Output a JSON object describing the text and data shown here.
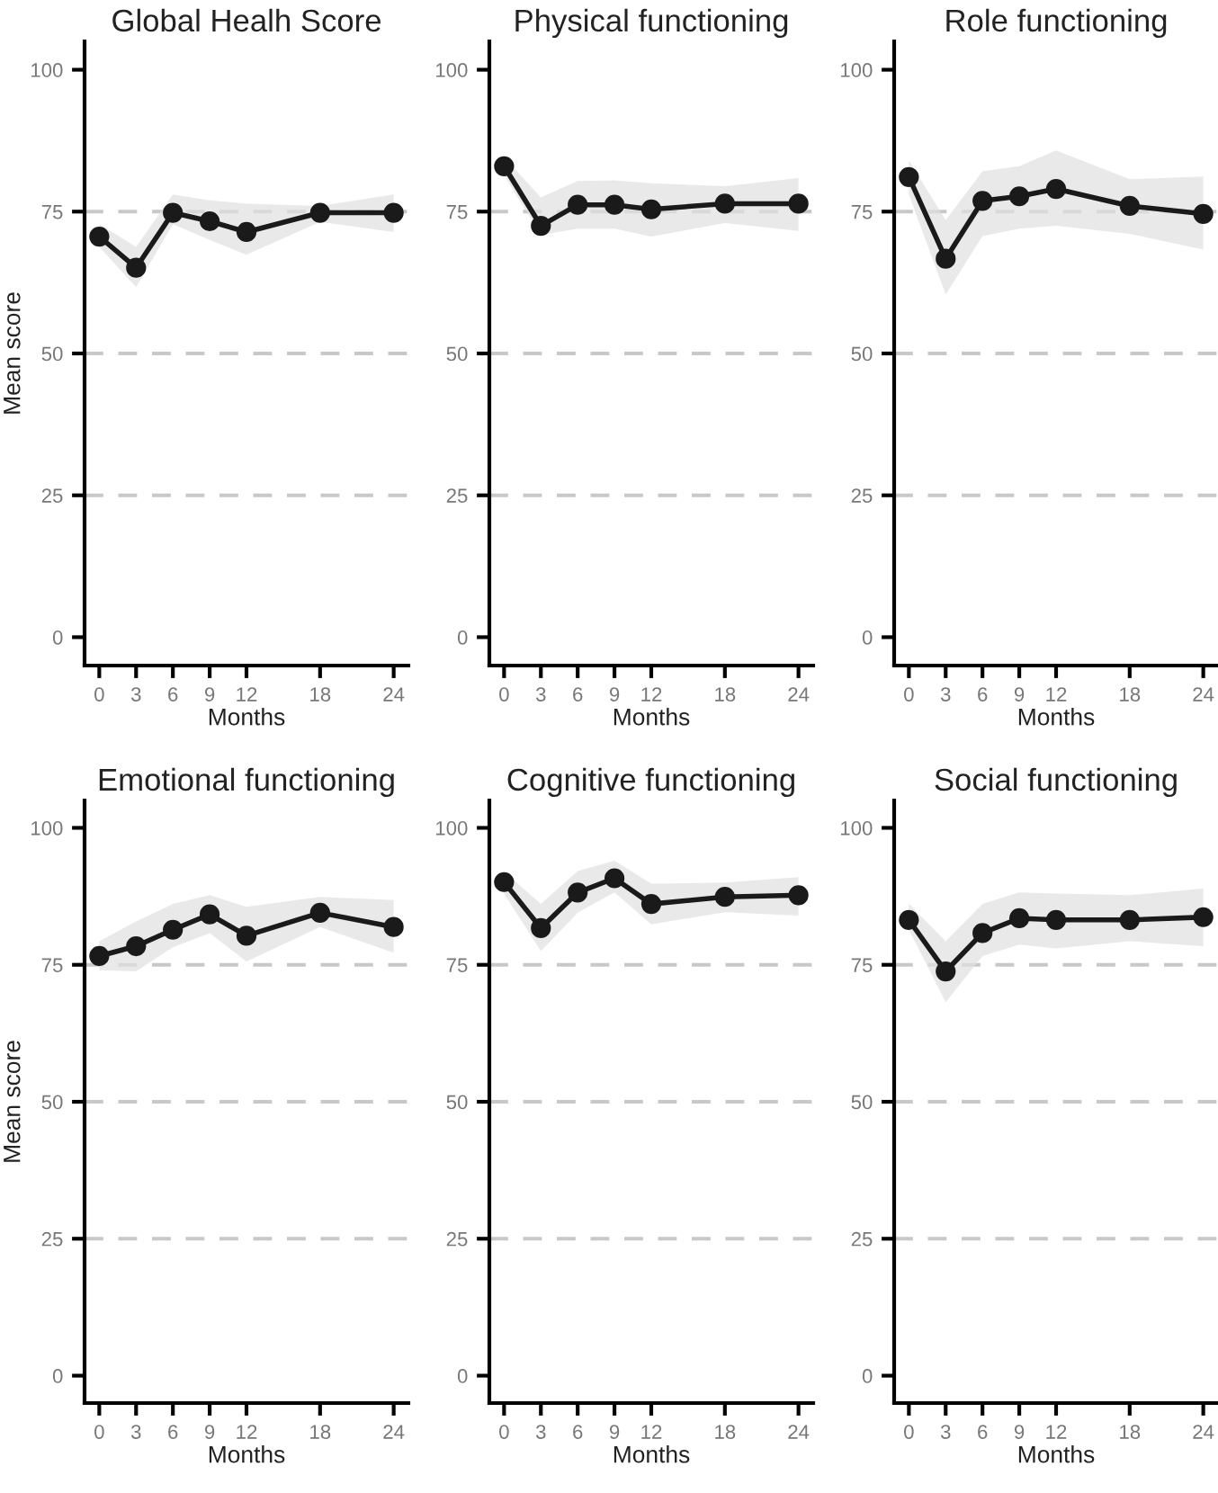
{
  "chart_data": [
    {
      "type": "line",
      "title": "Global Healh Score",
      "xlabel": "Months",
      "ylabel": "Mean score",
      "x": [
        0,
        3,
        6,
        9,
        12,
        18,
        24
      ],
      "xlim": [
        -1.2,
        25.2
      ],
      "xticks": [
        0,
        3,
        6,
        9,
        12,
        18,
        24
      ],
      "ylim": [
        -5,
        105
      ],
      "yticks": [
        0,
        25,
        50,
        75,
        100
      ],
      "marker": "circle",
      "line_style": "solid",
      "grid": false,
      "series": [
        {
          "color": "#1a1a1a",
          "values": [
            70.6,
            65.1,
            74.8,
            73.3,
            71.4,
            74.8,
            74.8
          ],
          "lower": [
            68.8,
            61.7,
            72.8,
            70,
            67.4,
            73.2,
            71.4
          ],
          "upper": [
            72.8,
            68.8,
            78,
            77,
            76.4,
            76,
            78
          ]
        }
      ],
      "ref_lines": [
        {
          "axis": "y",
          "value": 25,
          "color": "#c8c8c8",
          "line_style": "dashed"
        },
        {
          "axis": "y",
          "value": 50,
          "color": "#c8c8c8",
          "line_style": "dashed"
        },
        {
          "axis": "y",
          "value": 75,
          "color": "#c8c8c8",
          "line_style": "dashed"
        }
      ]
    },
    {
      "type": "line",
      "title": "Physical functioning",
      "xlabel": "Months",
      "x": [
        0,
        3,
        6,
        9,
        12,
        18,
        24
      ],
      "xlim": [
        -1.2,
        25.2
      ],
      "xticks": [
        0,
        3,
        6,
        9,
        12,
        18,
        24
      ],
      "ylim": [
        -5,
        105
      ],
      "yticks": [
        0,
        25,
        50,
        75,
        100
      ],
      "marker": "circle",
      "line_style": "solid",
      "grid": false,
      "series": [
        {
          "color": "#1a1a1a",
          "values": [
            83,
            72.5,
            76.2,
            76.2,
            75.4,
            76.4,
            76.4
          ],
          "lower": [
            81.4,
            70.9,
            72,
            72,
            70.6,
            73,
            71.6
          ],
          "upper": [
            84.6,
            77.5,
            80.4,
            80.5,
            80,
            79.5,
            80.9
          ]
        }
      ],
      "ref_lines": [
        {
          "axis": "y",
          "value": 25,
          "color": "#c8c8c8",
          "line_style": "dashed"
        },
        {
          "axis": "y",
          "value": 50,
          "color": "#c8c8c8",
          "line_style": "dashed"
        },
        {
          "axis": "y",
          "value": 75,
          "color": "#c8c8c8",
          "line_style": "dashed"
        }
      ]
    },
    {
      "type": "line",
      "title": "Role functioning",
      "xlabel": "Months",
      "x": [
        0,
        3,
        6,
        9,
        12,
        18,
        24
      ],
      "xlim": [
        -1.2,
        25.2
      ],
      "xticks": [
        0,
        3,
        6,
        9,
        12,
        18,
        24
      ],
      "ylim": [
        -5,
        105
      ],
      "yticks": [
        0,
        25,
        50,
        75,
        100
      ],
      "marker": "circle",
      "line_style": "solid",
      "grid": false,
      "series": [
        {
          "color": "#1a1a1a",
          "values": [
            81.1,
            66.7,
            76.9,
            77.7,
            79,
            76,
            74.6
          ],
          "lower": [
            78,
            60.4,
            70.7,
            72,
            72.5,
            71.1,
            68.3
          ],
          "upper": [
            84,
            73.5,
            82.1,
            83,
            85.8,
            80.7,
            81.2
          ]
        }
      ],
      "ref_lines": [
        {
          "axis": "y",
          "value": 25,
          "color": "#c8c8c8",
          "line_style": "dashed"
        },
        {
          "axis": "y",
          "value": 50,
          "color": "#c8c8c8",
          "line_style": "dashed"
        },
        {
          "axis": "y",
          "value": 75,
          "color": "#c8c8c8",
          "line_style": "dashed"
        }
      ]
    },
    {
      "type": "line",
      "title": "Emotional functioning",
      "xlabel": "Months",
      "ylabel": "Mean score",
      "x": [
        0,
        3,
        6,
        9,
        12,
        18,
        24
      ],
      "xlim": [
        -1.2,
        25.2
      ],
      "xticks": [
        0,
        3,
        6,
        9,
        12,
        18,
        24
      ],
      "ylim": [
        -5,
        105
      ],
      "yticks": [
        0,
        25,
        50,
        75,
        100
      ],
      "marker": "circle",
      "line_style": "solid",
      "grid": false,
      "series": [
        {
          "color": "#1a1a1a",
          "values": [
            76.6,
            78.4,
            81.4,
            84.2,
            80.3,
            84.5,
            81.9
          ],
          "lower": [
            74,
            73.8,
            78.2,
            80.8,
            75.6,
            81.9,
            77.2
          ],
          "upper": [
            79.3,
            82.9,
            86.1,
            87.7,
            85.6,
            87.4,
            86.8
          ]
        }
      ],
      "ref_lines": [
        {
          "axis": "y",
          "value": 25,
          "color": "#c8c8c8",
          "line_style": "dashed"
        },
        {
          "axis": "y",
          "value": 50,
          "color": "#c8c8c8",
          "line_style": "dashed"
        },
        {
          "axis": "y",
          "value": 75,
          "color": "#c8c8c8",
          "line_style": "dashed"
        }
      ]
    },
    {
      "type": "line",
      "title": "Cognitive functioning",
      "xlabel": "Months",
      "x": [
        0,
        3,
        6,
        9,
        12,
        18,
        24
      ],
      "xlim": [
        -1.2,
        25.2
      ],
      "xticks": [
        0,
        3,
        6,
        9,
        12,
        18,
        24
      ],
      "ylim": [
        -5,
        105
      ],
      "yticks": [
        0,
        25,
        50,
        75,
        100
      ],
      "marker": "circle",
      "line_style": "solid",
      "grid": false,
      "series": [
        {
          "color": "#1a1a1a",
          "values": [
            90.1,
            81.7,
            88.2,
            90.8,
            86.1,
            87.4,
            87.7
          ],
          "lower": [
            88,
            77.5,
            84.5,
            88.2,
            82.4,
            84.6,
            84
          ],
          "upper": [
            92,
            86.1,
            92.1,
            94,
            89.8,
            90,
            91
          ]
        }
      ],
      "ref_lines": [
        {
          "axis": "y",
          "value": 25,
          "color": "#c8c8c8",
          "line_style": "dashed"
        },
        {
          "axis": "y",
          "value": 50,
          "color": "#c8c8c8",
          "line_style": "dashed"
        },
        {
          "axis": "y",
          "value": 75,
          "color": "#c8c8c8",
          "line_style": "dashed"
        }
      ]
    },
    {
      "type": "line",
      "title": "Social functioning",
      "xlabel": "Months",
      "x": [
        0,
        3,
        6,
        9,
        12,
        18,
        24
      ],
      "xlim": [
        -1.2,
        25.2
      ],
      "xticks": [
        0,
        3,
        6,
        9,
        12,
        18,
        24
      ],
      "ylim": [
        -5,
        105
      ],
      "yticks": [
        0,
        25,
        50,
        75,
        100
      ],
      "marker": "circle",
      "line_style": "solid",
      "grid": false,
      "series": [
        {
          "color": "#1a1a1a",
          "values": [
            83.2,
            73.8,
            80.8,
            83.5,
            83.2,
            83.2,
            83.7
          ],
          "lower": [
            81.4,
            68.2,
            76.6,
            78.7,
            78,
            79.3,
            78.4
          ],
          "upper": [
            86.1,
            79.3,
            86.1,
            88.2,
            88,
            87.7,
            88.9
          ]
        }
      ],
      "ref_lines": [
        {
          "axis": "y",
          "value": 25,
          "color": "#c8c8c8",
          "line_style": "dashed"
        },
        {
          "axis": "y",
          "value": 50,
          "color": "#c8c8c8",
          "line_style": "dashed"
        },
        {
          "axis": "y",
          "value": 75,
          "color": "#c8c8c8",
          "line_style": "dashed"
        }
      ]
    }
  ]
}
